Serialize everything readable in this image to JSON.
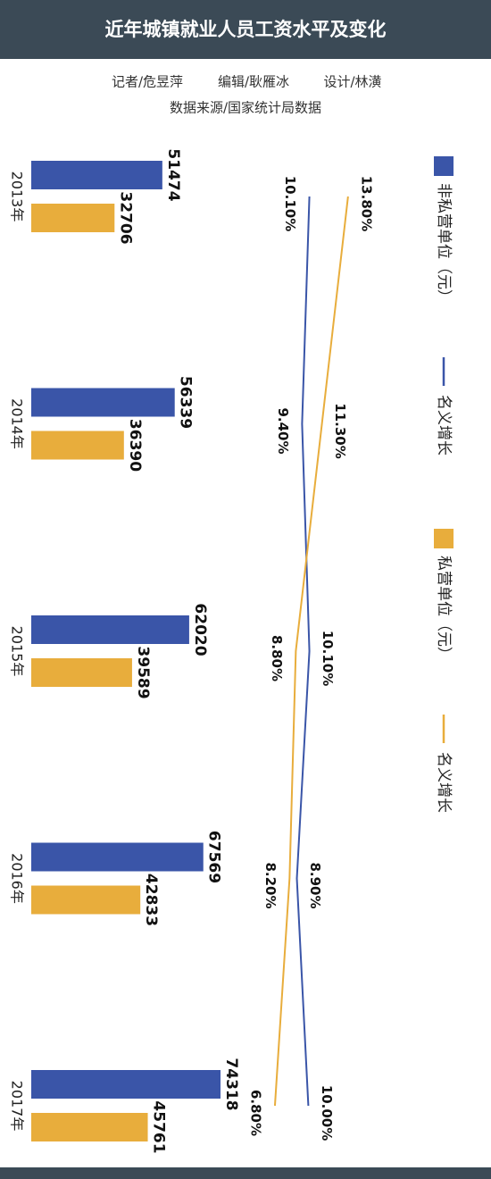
{
  "header": {
    "title": "近年城镇就业人员工资水平及变化",
    "credits": [
      "记者/危昱萍",
      "编辑/耿雁冰",
      "设计/林潢"
    ],
    "source": "数据来源/国家统计局数据"
  },
  "chart_data": {
    "type": "bar",
    "categories": [
      "2013年",
      "2014年",
      "2015年",
      "2016年",
      "2017年"
    ],
    "series": [
      {
        "name": "非私营单位（元）",
        "color": "#3a55a8",
        "values": [
          51474,
          56339,
          62020,
          67569,
          74318
        ]
      },
      {
        "name": "私营单位（元）",
        "color": "#e8ad3c",
        "values": [
          32706,
          36390,
          39589,
          42833,
          45761
        ]
      },
      {
        "name": "名义增长",
        "type": "line",
        "color": "#3a55a8",
        "values": [
          10.1,
          9.4,
          10.1,
          8.9,
          10.0
        ],
        "value_labels": [
          "10.10%",
          "9.40%",
          "10.10%",
          "8.90%",
          "10.00%"
        ]
      },
      {
        "name": "名义增长",
        "type": "line",
        "color": "#e8ad3c",
        "values": [
          13.8,
          11.3,
          8.8,
          8.2,
          6.8
        ],
        "value_labels": [
          "13.80%",
          "11.30%",
          "8.80%",
          "8.20%",
          "6.80%"
        ]
      }
    ]
  }
}
